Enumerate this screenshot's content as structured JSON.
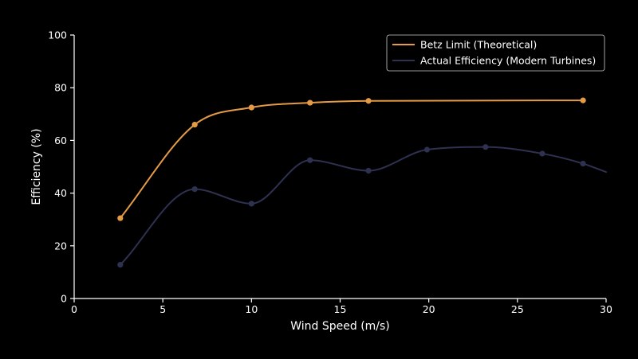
{
  "chart_data": {
    "type": "line",
    "title": "",
    "xlabel": "Wind Speed (m/s)",
    "ylabel": "Efficiency (%)",
    "xlim": [
      0,
      30
    ],
    "ylim": [
      0,
      100
    ],
    "xticks": [
      0,
      5,
      10,
      15,
      20,
      25,
      30
    ],
    "yticks": [
      0,
      20,
      40,
      60,
      80,
      100
    ],
    "grid": false,
    "legend_position": "top-right",
    "series": [
      {
        "name": "Betz Limit (Theoretical)",
        "color": "#e59a45",
        "x": [
          2.6,
          6.8,
          10.0,
          13.3,
          16.6,
          28.7
        ],
        "y": [
          30.5,
          66.0,
          72.5,
          74.3,
          75.0,
          75.2
        ]
      },
      {
        "name": "Actual Efficiency (Modern Turbines)",
        "color": "#2e3150",
        "x": [
          2.6,
          6.8,
          10.0,
          13.3,
          16.6,
          19.9,
          23.2,
          26.4,
          28.7,
          30.0
        ],
        "y": [
          12.8,
          41.5,
          36.0,
          52.5,
          48.5,
          56.5,
          57.5,
          55.0,
          51.2,
          48.0
        ],
        "markers": [
          true,
          true,
          true,
          true,
          true,
          true,
          true,
          true,
          true,
          false
        ]
      }
    ]
  }
}
